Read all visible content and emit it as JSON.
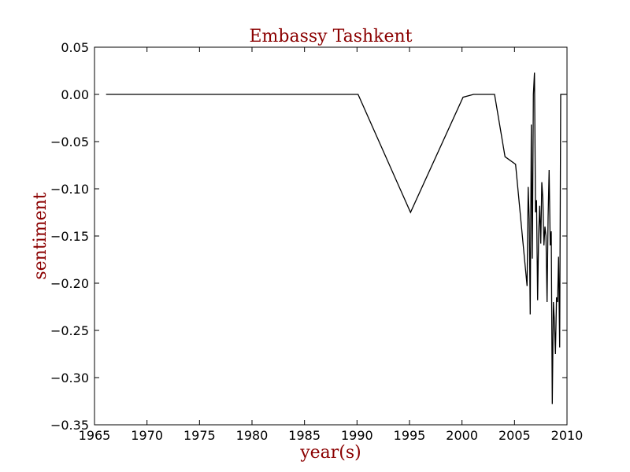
{
  "chart_data": {
    "type": "line",
    "title": "Embassy Tashkent",
    "xlabel": "year(s)",
    "ylabel": "sentiment",
    "xlim": [
      1965,
      2010
    ],
    "ylim": [
      -0.35,
      0.05
    ],
    "x_ticks": [
      1965,
      1970,
      1975,
      1980,
      1985,
      1990,
      1995,
      2000,
      2005,
      2010
    ],
    "y_ticks": [
      0.05,
      0.0,
      -0.05,
      -0.1,
      -0.15,
      -0.2,
      -0.25,
      -0.3,
      -0.35
    ],
    "x_tick_labels": [
      "1965",
      "1970",
      "1975",
      "1980",
      "1985",
      "1990",
      "1995",
      "2000",
      "2005",
      "2010"
    ],
    "y_tick_labels": [
      "0.05",
      "0.00",
      "−0.05",
      "−0.10",
      "−0.15",
      "−0.20",
      "−0.25",
      "−0.30",
      "−0.35"
    ],
    "grid": false,
    "line_color": "#000000",
    "title_color": "#8b0000",
    "series": [
      {
        "x": [
          1966.1,
          1990.1,
          1995.1,
          2000.1,
          2001.1,
          2003.1,
          2004.1,
          2005.1,
          2006.2,
          2006.3,
          2006.4,
          2006.5,
          2006.6,
          2006.7,
          2006.8,
          2006.9,
          2007.0,
          2007.1,
          2007.2,
          2007.3,
          2007.4,
          2007.5,
          2007.6,
          2007.7,
          2007.8,
          2007.9,
          2008.0,
          2008.1,
          2008.2,
          2008.3,
          2008.4,
          2008.5,
          2008.6,
          2008.7,
          2008.8,
          2008.9,
          2009.0,
          2009.1,
          2009.2,
          2009.3,
          2009.4,
          2009.5,
          2009.6,
          2009.7,
          2009.8,
          2009.9
        ],
        "y": [
          0.0,
          0.0,
          -0.125,
          -0.003,
          0.0,
          0.0,
          -0.066,
          -0.074,
          -0.203,
          -0.098,
          -0.132,
          -0.233,
          -0.032,
          -0.174,
          0.0,
          0.023,
          -0.125,
          -0.112,
          -0.218,
          -0.148,
          -0.118,
          -0.158,
          -0.093,
          -0.11,
          -0.16,
          -0.14,
          -0.15,
          -0.22,
          -0.13,
          -0.08,
          -0.16,
          -0.145,
          -0.328,
          -0.22,
          -0.24,
          -0.275,
          -0.215,
          -0.22,
          -0.172,
          -0.268,
          0.0,
          0.0,
          0.0,
          0.0,
          0.0,
          0.0
        ]
      }
    ]
  }
}
